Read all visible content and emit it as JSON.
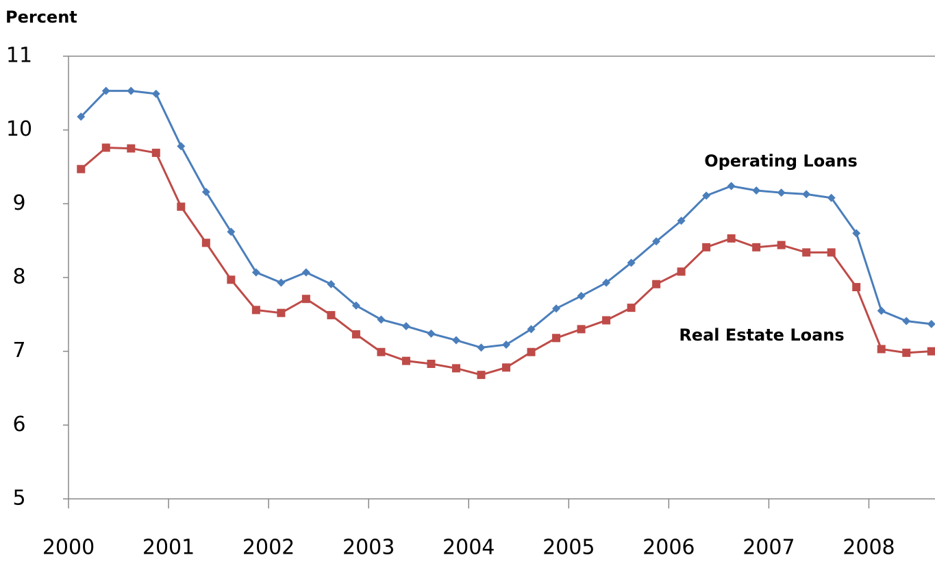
{
  "chart_data": {
    "type": "line",
    "y_label": "Percent",
    "x": [
      2000.125,
      2000.375,
      2000.625,
      2000.875,
      2001.125,
      2001.375,
      2001.625,
      2001.875,
      2002.125,
      2002.375,
      2002.625,
      2002.875,
      2003.125,
      2003.375,
      2003.625,
      2003.875,
      2004.125,
      2004.375,
      2004.625,
      2004.875,
      2005.125,
      2005.375,
      2005.625,
      2005.875,
      2006.125,
      2006.375,
      2006.625,
      2006.875,
      2007.125,
      2007.375,
      2007.625,
      2007.875,
      2008.125,
      2008.375,
      2008.625
    ],
    "series": [
      {
        "name": "Operating Loans",
        "color": "#4a7ebb",
        "marker": "diamond",
        "values": [
          10.18,
          10.53,
          10.53,
          10.49,
          9.78,
          9.16,
          8.62,
          8.07,
          7.93,
          8.07,
          7.91,
          7.62,
          7.43,
          7.34,
          7.24,
          7.15,
          7.05,
          7.09,
          7.3,
          7.58,
          7.75,
          7.93,
          8.2,
          8.49,
          8.77,
          9.11,
          9.24,
          9.18,
          9.15,
          9.13,
          9.08,
          8.6,
          7.55,
          7.41,
          7.37
        ]
      },
      {
        "name": "Real Estate Loans",
        "color": "#be4b48",
        "marker": "square",
        "values": [
          9.47,
          9.76,
          9.75,
          9.69,
          8.96,
          8.47,
          7.97,
          7.56,
          7.52,
          7.71,
          7.49,
          7.23,
          6.99,
          6.87,
          6.83,
          6.77,
          6.68,
          6.78,
          6.99,
          7.18,
          7.3,
          7.42,
          7.59,
          7.91,
          8.08,
          8.41,
          8.53,
          8.41,
          8.44,
          8.34,
          8.34,
          7.87,
          7.03,
          6.98,
          7.0
        ]
      }
    ],
    "xlim": [
      2000,
      2008.75
    ],
    "xticks": [
      2000,
      2001,
      2002,
      2003,
      2004,
      2005,
      2006,
      2007,
      2008
    ],
    "ylim": [
      5,
      11
    ],
    "yticks": [
      5,
      6,
      7,
      8,
      9,
      10,
      11
    ],
    "grid": false
  }
}
